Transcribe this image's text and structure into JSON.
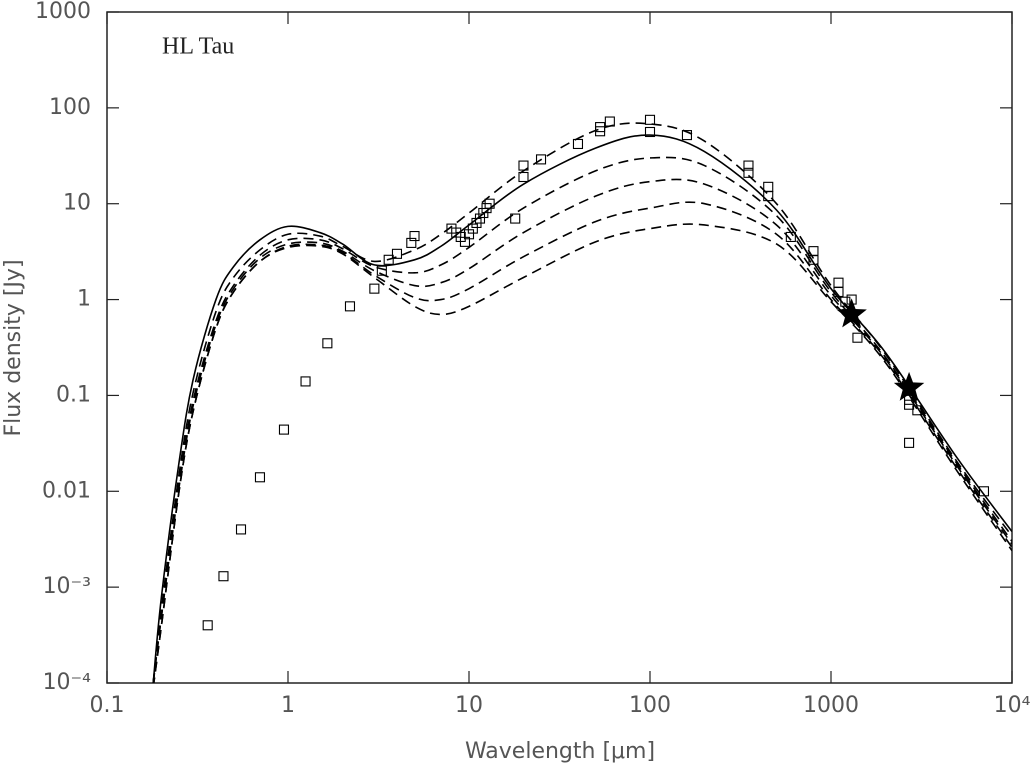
{
  "chart_data": {
    "type": "line",
    "annotation": "HL Tau",
    "xlabel": "Wavelength [μm]",
    "ylabel": "Flux density [Jy]",
    "xscale": "log",
    "yscale": "log",
    "xlim": [
      0.1,
      10000
    ],
    "ylim": [
      0.0001,
      1000
    ],
    "xticks": [
      0.1,
      1,
      10,
      100,
      1000,
      {
        "value": 10000,
        "label": "10⁴"
      }
    ],
    "yticks": [
      {
        "value": 0.0001,
        "label": "10⁻⁴"
      },
      {
        "value": 0.001,
        "label": "10⁻³"
      },
      0.01,
      0.1,
      1,
      10,
      100,
      1000
    ],
    "x": [
      0.18,
      0.2,
      0.25,
      0.3,
      0.4,
      0.5,
      0.7,
      1,
      1.5,
      2,
      3,
      5,
      7,
      10,
      20,
      50,
      100,
      200,
      500,
      1000,
      2000,
      5000,
      10000
    ],
    "series": [
      {
        "style": "solid",
        "color": "#000000",
        "values": [
          0.0001,
          0.0008,
          0.02,
          0.15,
          1.0,
          2.2,
          4.2,
          5.8,
          5.0,
          3.8,
          2.3,
          2.6,
          3.6,
          6,
          16,
          38,
          52,
          35,
          8.6,
          1.3,
          0.28,
          0.022,
          0.0038
        ]
      },
      {
        "style": "dashed",
        "color": "#000000",
        "values": [
          0.0001,
          0.0006,
          0.015,
          0.11,
          0.75,
          1.7,
          3.3,
          4.8,
          4.6,
          3.6,
          2.5,
          3.3,
          4.8,
          8,
          22,
          58,
          68,
          45,
          10,
          1.4,
          0.27,
          0.02,
          0.0034
        ]
      },
      {
        "style": "dashed",
        "color": "#000000",
        "values": [
          0.0001,
          0.0005,
          0.012,
          0.09,
          0.6,
          1.4,
          2.9,
          4.2,
          4.2,
          3.4,
          2.2,
          1.9,
          2.3,
          3.5,
          9,
          22,
          30,
          25,
          7.5,
          1.2,
          0.25,
          0.019,
          0.003
        ]
      },
      {
        "style": "dashed",
        "color": "#000000",
        "values": [
          0.0001,
          0.0005,
          0.011,
          0.08,
          0.55,
          1.3,
          2.7,
          3.8,
          3.9,
          3.2,
          2.0,
          1.4,
          1.5,
          2.1,
          5,
          12,
          17,
          16,
          6,
          1.1,
          0.24,
          0.018,
          0.0028
        ]
      },
      {
        "style": "dashed",
        "color": "#000000",
        "values": [
          9e-05,
          0.0004,
          0.01,
          0.07,
          0.5,
          1.2,
          2.5,
          3.6,
          3.7,
          3.1,
          1.8,
          1.05,
          1.0,
          1.3,
          2.8,
          6.5,
          9,
          10,
          4.8,
          1.0,
          0.23,
          0.017,
          0.0026
        ]
      },
      {
        "style": "dashed",
        "color": "#000000",
        "values": [
          9e-05,
          0.0004,
          0.01,
          0.07,
          0.5,
          1.2,
          2.5,
          3.5,
          3.6,
          3.0,
          1.7,
          0.85,
          0.7,
          0.85,
          1.7,
          4,
          5.5,
          6,
          3.8,
          0.95,
          0.22,
          0.016,
          0.0024
        ]
      },
      {
        "marker": "square",
        "color": "#000000",
        "x": [
          0.36,
          0.44,
          0.55,
          0.7,
          0.95,
          1.25,
          1.65,
          2.2,
          3.0,
          3.3,
          3.6,
          4.0,
          4.8,
          5.0,
          8,
          8.5,
          9,
          9.5,
          10,
          10.5,
          11,
          11.5,
          12,
          12.5,
          13,
          18,
          20,
          20,
          25,
          40,
          53,
          53,
          60,
          100,
          100,
          160,
          350,
          350,
          450,
          450,
          600,
          800,
          800,
          1100,
          1100,
          1200,
          1300,
          1400,
          2700,
          2700,
          3000,
          2700,
          7000
        ],
        "values": [
          0.0004,
          0.0013,
          0.004,
          0.014,
          0.044,
          0.14,
          0.35,
          0.85,
          1.3,
          2.0,
          2.6,
          3.0,
          3.9,
          4.6,
          5.5,
          5,
          4.5,
          4,
          4.8,
          5.5,
          6.3,
          7,
          8,
          9,
          10,
          7,
          25,
          19,
          29,
          42,
          63,
          57,
          72,
          75,
          56,
          52,
          25,
          21,
          15,
          12,
          4.5,
          3.2,
          2.6,
          1.5,
          1.2,
          0.95,
          1.0,
          0.4,
          0.09,
          0.08,
          0.07,
          0.032,
          0.01
        ]
      },
      {
        "marker": "star",
        "color": "#000000",
        "x": [
          1300,
          2700
        ],
        "values": [
          0.7,
          0.12
        ]
      }
    ]
  }
}
